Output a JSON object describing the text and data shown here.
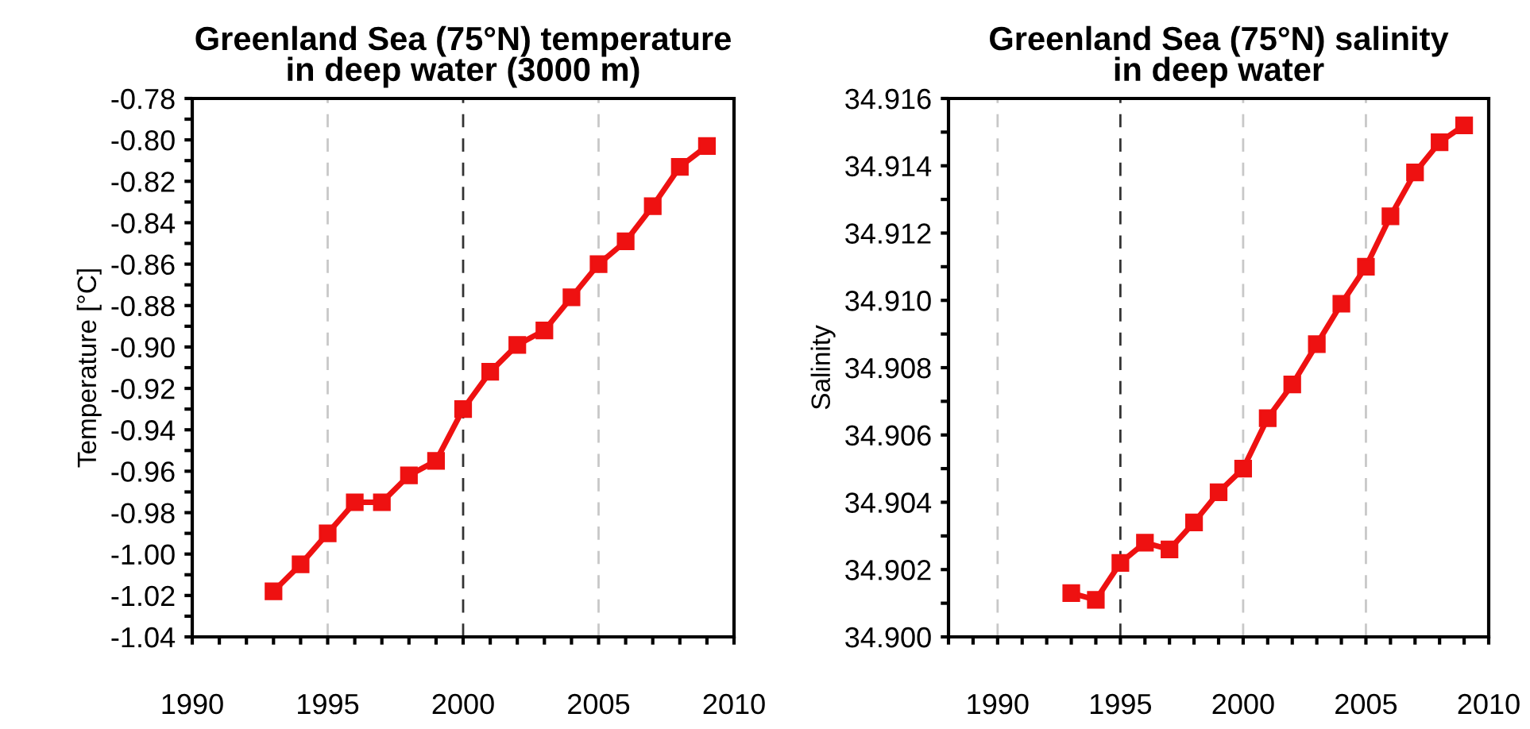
{
  "chart_data": [
    {
      "type": "line",
      "title": "Greenland Sea (75°N) temperature\nin deep water (3000 m)",
      "ylabel": "Temperature [°C]",
      "x": [
        1993,
        1994,
        1995,
        1996,
        1997,
        1998,
        1999,
        2000,
        2001,
        2002,
        2003,
        2004,
        2005,
        2006,
        2007,
        2008,
        2009
      ],
      "series": [
        {
          "color": "#ee1111",
          "values": [
            -1.018,
            -1.005,
            -0.99,
            -0.975,
            -0.975,
            -0.962,
            -0.955,
            -0.93,
            -0.912,
            -0.899,
            -0.892,
            -0.876,
            -0.86,
            -0.849,
            -0.832,
            -0.813,
            -0.803
          ]
        }
      ],
      "marker": "square",
      "line_style": "solid",
      "xlim": [
        1990,
        2010
      ],
      "xticks": [
        1990,
        {
          "value": 1991,
          "label": null
        },
        {
          "value": 1992,
          "label": null
        },
        {
          "value": 1993,
          "label": null
        },
        {
          "value": 1994,
          "label": null
        },
        1995,
        {
          "value": 1996,
          "label": null
        },
        {
          "value": 1997,
          "label": null
        },
        {
          "value": 1998,
          "label": null
        },
        {
          "value": 1999,
          "label": null
        },
        2000,
        {
          "value": 2001,
          "label": null
        },
        {
          "value": 2002,
          "label": null
        },
        {
          "value": 2003,
          "label": null
        },
        {
          "value": 2004,
          "label": null
        },
        2005,
        {
          "value": 2006,
          "label": null
        },
        {
          "value": 2007,
          "label": null
        },
        {
          "value": 2008,
          "label": null
        },
        {
          "value": 2009,
          "label": null
        },
        2010
      ],
      "ylim": [
        -1.04,
        -0.78
      ],
      "yticks": [
        {
          "value": -1.04,
          "label": "-1.04"
        },
        {
          "value": -1.03,
          "label": null
        },
        {
          "value": -1.02,
          "label": "-1.02"
        },
        {
          "value": -1.01,
          "label": null
        },
        {
          "value": -1.0,
          "label": "-1.00"
        },
        {
          "value": -0.99,
          "label": null
        },
        {
          "value": -0.98,
          "label": "-0.98"
        },
        {
          "value": -0.97,
          "label": null
        },
        {
          "value": -0.96,
          "label": "-0.96"
        },
        {
          "value": -0.95,
          "label": null
        },
        {
          "value": -0.94,
          "label": "-0.94"
        },
        {
          "value": -0.93,
          "label": null
        },
        {
          "value": -0.92,
          "label": "-0.92"
        },
        {
          "value": -0.91,
          "label": null
        },
        {
          "value": -0.9,
          "label": "-0.90"
        },
        {
          "value": -0.89,
          "label": null
        },
        {
          "value": -0.88,
          "label": "-0.88"
        },
        {
          "value": -0.87,
          "label": null
        },
        {
          "value": -0.86,
          "label": "-0.86"
        },
        {
          "value": -0.85,
          "label": null
        },
        {
          "value": -0.84,
          "label": "-0.84"
        },
        {
          "value": -0.83,
          "label": null
        },
        {
          "value": -0.82,
          "label": "-0.82"
        },
        {
          "value": -0.81,
          "label": null
        },
        {
          "value": -0.8,
          "label": "-0.80"
        },
        {
          "value": -0.79,
          "label": null
        },
        {
          "value": -0.78,
          "label": "-0.78"
        }
      ],
      "ref_lines": [
        {
          "axis": "x",
          "value": 1995,
          "color": "#c8c8c8",
          "line_style": "dashed"
        },
        {
          "axis": "x",
          "value": 2000,
          "color": "#333333",
          "line_style": "dashed"
        },
        {
          "axis": "x",
          "value": 2005,
          "color": "#c8c8c8",
          "line_style": "dashed"
        }
      ]
    },
    {
      "type": "line",
      "title": "Greenland Sea (75°N) salinity\nin deep water",
      "ylabel": "Salinity",
      "x": [
        1993,
        1994,
        1995,
        1996,
        1997,
        1998,
        1999,
        2000,
        2001,
        2002,
        2003,
        2004,
        2005,
        2006,
        2007,
        2008,
        2009
      ],
      "series": [
        {
          "color": "#ee1111",
          "values": [
            34.9013,
            34.9011,
            34.9022,
            34.9028,
            34.9026,
            34.9034,
            34.9043,
            34.905,
            34.9065,
            34.9075,
            34.9087,
            34.9099,
            34.911,
            34.9125,
            34.9138,
            34.9147,
            34.9152
          ]
        }
      ],
      "marker": "square",
      "line_style": "solid",
      "xlim": [
        1988,
        2010
      ],
      "xticks": [
        {
          "value": 1988,
          "label": null
        },
        {
          "value": 1989,
          "label": null
        },
        1990,
        {
          "value": 1991,
          "label": null
        },
        {
          "value": 1992,
          "label": null
        },
        {
          "value": 1993,
          "label": null
        },
        {
          "value": 1994,
          "label": null
        },
        1995,
        {
          "value": 1996,
          "label": null
        },
        {
          "value": 1997,
          "label": null
        },
        {
          "value": 1998,
          "label": null
        },
        {
          "value": 1999,
          "label": null
        },
        2000,
        {
          "value": 2001,
          "label": null
        },
        {
          "value": 2002,
          "label": null
        },
        {
          "value": 2003,
          "label": null
        },
        {
          "value": 2004,
          "label": null
        },
        2005,
        {
          "value": 2006,
          "label": null
        },
        {
          "value": 2007,
          "label": null
        },
        {
          "value": 2008,
          "label": null
        },
        {
          "value": 2009,
          "label": null
        },
        2010
      ],
      "ylim": [
        34.9,
        34.916
      ],
      "yticks": [
        {
          "value": 34.9,
          "label": "34.900"
        },
        {
          "value": 34.901,
          "label": null
        },
        {
          "value": 34.902,
          "label": "34.902"
        },
        {
          "value": 34.903,
          "label": null
        },
        {
          "value": 34.904,
          "label": "34.904"
        },
        {
          "value": 34.905,
          "label": null
        },
        {
          "value": 34.906,
          "label": "34.906"
        },
        {
          "value": 34.907,
          "label": null
        },
        {
          "value": 34.908,
          "label": "34.908"
        },
        {
          "value": 34.909,
          "label": null
        },
        {
          "value": 34.91,
          "label": "34.910"
        },
        {
          "value": 34.911,
          "label": null
        },
        {
          "value": 34.912,
          "label": "34.912"
        },
        {
          "value": 34.913,
          "label": null
        },
        {
          "value": 34.914,
          "label": "34.914"
        },
        {
          "value": 34.915,
          "label": null
        },
        {
          "value": 34.916,
          "label": "34.916"
        }
      ],
      "ref_lines": [
        {
          "axis": "x",
          "value": 1990,
          "color": "#c8c8c8",
          "line_style": "dashed"
        },
        {
          "axis": "x",
          "value": 1995,
          "color": "#333333",
          "line_style": "dashed"
        },
        {
          "axis": "x",
          "value": 2000,
          "color": "#c8c8c8",
          "line_style": "dashed"
        },
        {
          "axis": "x",
          "value": 2005,
          "color": "#c8c8c8",
          "line_style": "dashed"
        }
      ]
    }
  ]
}
